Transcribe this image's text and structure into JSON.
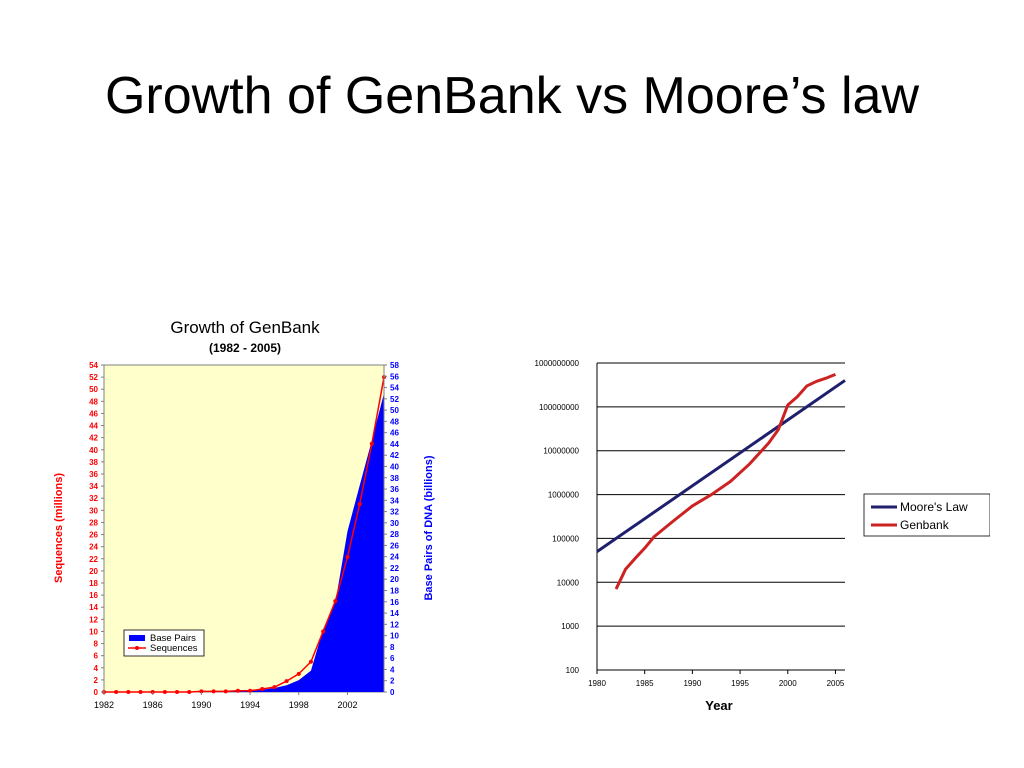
{
  "slide": {
    "title": "Growth of GenBank vs Moore’s law"
  },
  "chart_data": [
    {
      "type": "area",
      "title": "Growth of GenBank",
      "subtitle": "(1982 - 2005)",
      "ylabel_left": "Sequences (millions)",
      "ylabel_right": "Base Pairs of DNA (billions)",
      "xlim": [
        1982,
        2005
      ],
      "ylim_left": [
        0,
        54
      ],
      "ylim_right": [
        0,
        58
      ],
      "x_ticks": [
        "1982",
        "1986",
        "1990",
        "1994",
        "1998",
        "2002"
      ],
      "y_left_ticks": [
        0,
        2,
        4,
        6,
        8,
        10,
        12,
        14,
        16,
        18,
        20,
        22,
        24,
        26,
        28,
        30,
        32,
        34,
        36,
        38,
        40,
        42,
        44,
        46,
        48,
        50,
        52,
        54
      ],
      "y_right_ticks": [
        0,
        2,
        4,
        6,
        8,
        10,
        12,
        14,
        16,
        18,
        20,
        22,
        24,
        26,
        28,
        30,
        32,
        34,
        36,
        38,
        40,
        42,
        44,
        46,
        48,
        50,
        52,
        54,
        56,
        58
      ],
      "legend_position": "bottom-left",
      "colors": {
        "plot_bg": "#FFFFCC",
        "base_pairs": "#0000FF",
        "sequences": "#FF0000",
        "left_axis": "#FF0000",
        "right_axis": "#0000FF"
      },
      "series": [
        {
          "name": "Base Pairs",
          "type": "area",
          "axis": "right",
          "x": [
            1982,
            1983,
            1984,
            1985,
            1986,
            1987,
            1988,
            1989,
            1990,
            1991,
            1992,
            1993,
            1994,
            1995,
            1996,
            1997,
            1998,
            1999,
            2000,
            2001,
            2002,
            2003,
            2004,
            2005
          ],
          "values": [
            0,
            0,
            0,
            0,
            0,
            0,
            0,
            0,
            0,
            0,
            0.1,
            0.2,
            0.3,
            0.4,
            0.7,
            1.2,
            2.1,
            3.8,
            11.1,
            15.8,
            28.5,
            36.6,
            44.6,
            53.0
          ]
        },
        {
          "name": "Sequences",
          "type": "line",
          "axis": "left",
          "x": [
            1982,
            1983,
            1984,
            1985,
            1986,
            1987,
            1988,
            1989,
            1990,
            1991,
            1992,
            1993,
            1994,
            1995,
            1996,
            1997,
            1998,
            1999,
            2000,
            2001,
            2002,
            2003,
            2004,
            2005
          ],
          "values": [
            0,
            0,
            0,
            0,
            0,
            0,
            0,
            0,
            0.1,
            0.1,
            0.1,
            0.2,
            0.2,
            0.5,
            0.8,
            1.8,
            3.0,
            5.0,
            10.0,
            15.0,
            22.3,
            31.0,
            41.0,
            52.0
          ]
        }
      ]
    },
    {
      "type": "line",
      "xlabel": "Year",
      "yscale": "log",
      "xlim": [
        1980,
        2006
      ],
      "ylim": [
        100,
        1000000000
      ],
      "x_ticks": [
        "1980",
        "1985",
        "1990",
        "1995",
        "2000",
        "2005"
      ],
      "y_ticks": [
        "100",
        "1000",
        "10000",
        "100000",
        "1000000",
        "10000000",
        "100000000",
        "1000000000"
      ],
      "grid": "horizontal",
      "legend_position": "right",
      "colors": {
        "moores_law": "#1F1F6E",
        "genbank": "#CC2222"
      },
      "series": [
        {
          "name": "Moore's Law",
          "x": [
            1980,
            2006
          ],
          "values": [
            50000,
            400000000
          ]
        },
        {
          "name": "Genbank",
          "x": [
            1982,
            1983,
            1984,
            1985,
            1986,
            1988,
            1990,
            1992,
            1994,
            1996,
            1998,
            1999,
            2000,
            2001,
            2002,
            2003,
            2004,
            2005
          ],
          "values": [
            7000,
            20000,
            35000,
            60000,
            110000,
            250000,
            550000,
            1000000,
            2000000,
            5000000,
            15000000,
            30000000,
            110000000,
            170000000,
            300000000,
            380000000,
            450000000,
            550000000
          ]
        }
      ]
    }
  ]
}
